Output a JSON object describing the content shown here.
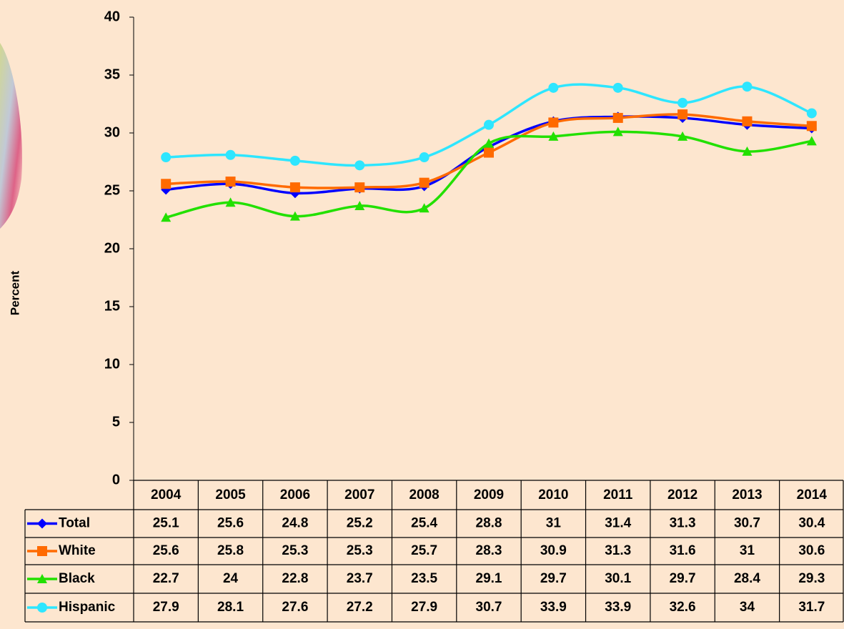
{
  "chart_data": {
    "type": "line",
    "y_label": "Percent",
    "categories": [
      "2004",
      "2005",
      "2006",
      "2007",
      "2008",
      "2009",
      "2010",
      "2011",
      "2012",
      "2013",
      "2014"
    ],
    "series": [
      {
        "name": "Total",
        "color": "#0000ff",
        "marker": "diamond",
        "values": [
          25.1,
          25.6,
          24.8,
          25.2,
          25.4,
          28.8,
          31,
          31.4,
          31.3,
          30.7,
          30.4
        ]
      },
      {
        "name": "White",
        "color": "#ff6a00",
        "marker": "square",
        "values": [
          25.6,
          25.8,
          25.3,
          25.3,
          25.7,
          28.3,
          30.9,
          31.3,
          31.6,
          31,
          30.6
        ]
      },
      {
        "name": "Black",
        "color": "#22e000",
        "marker": "triangle",
        "values": [
          22.7,
          24,
          22.8,
          23.7,
          23.5,
          29.1,
          29.7,
          30.1,
          29.7,
          28.4,
          29.3
        ]
      },
      {
        "name": "Hispanic",
        "color": "#2ee6ff",
        "marker": "circle",
        "values": [
          27.9,
          28.1,
          27.6,
          27.2,
          27.9,
          30.7,
          33.9,
          33.9,
          32.6,
          34,
          31.7
        ]
      }
    ],
    "ylim": [
      0,
      40
    ],
    "yticks": [
      0,
      5,
      10,
      15,
      20,
      25,
      30,
      35,
      40
    ],
    "grid": false
  }
}
